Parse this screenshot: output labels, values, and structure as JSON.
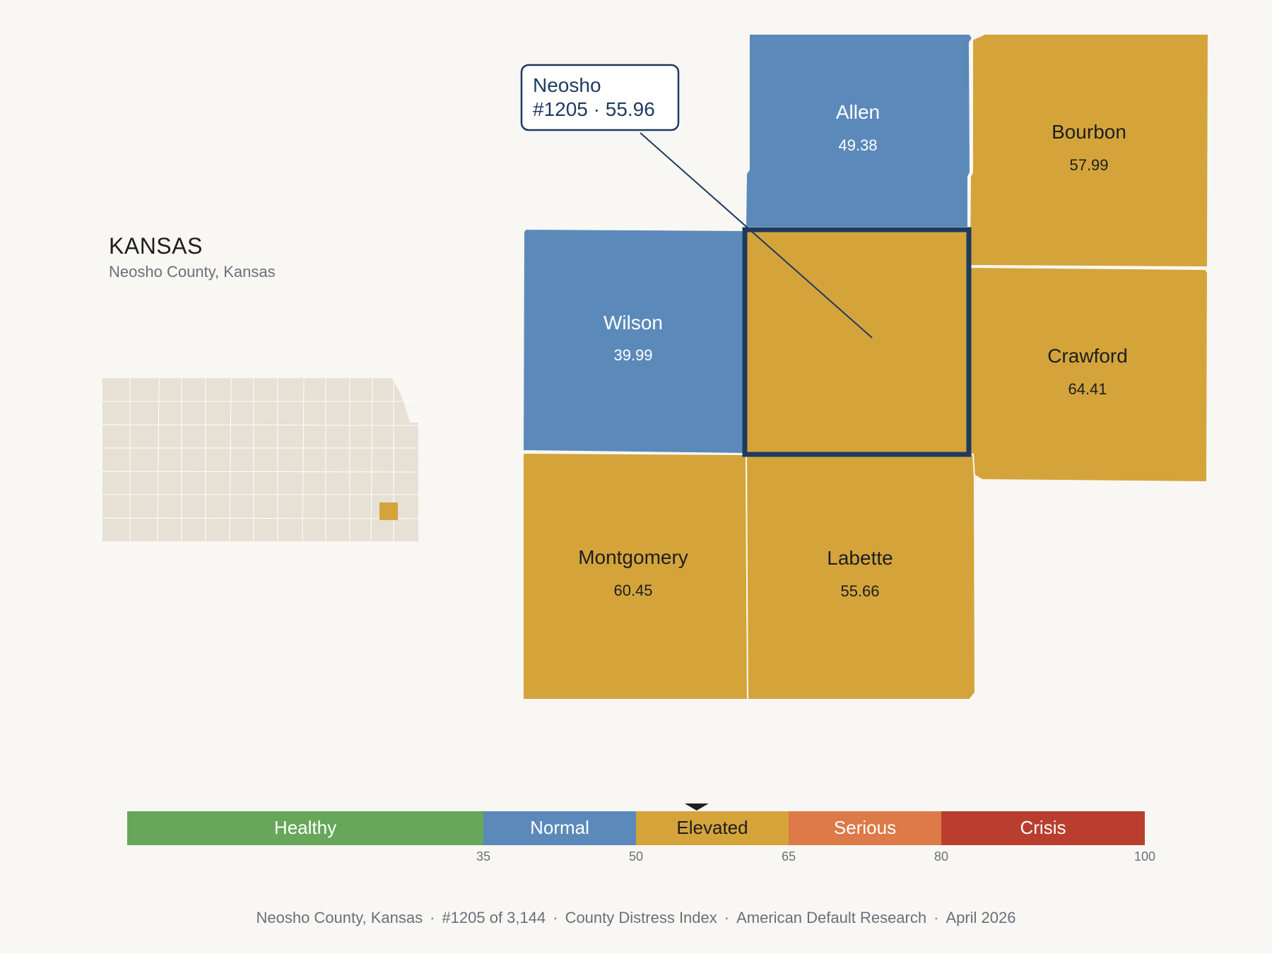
{
  "state": {
    "title": "KANSAS",
    "subtitle": "Neosho County, Kansas"
  },
  "focus": {
    "name": "Neosho",
    "rank_score": "#1205 · 55.96",
    "score": 55.96
  },
  "counties": [
    {
      "id": "allen",
      "name": "Allen",
      "score": "49.38",
      "category": "normal"
    },
    {
      "id": "bourbon",
      "name": "Bourbon",
      "score": "57.99",
      "category": "elevated"
    },
    {
      "id": "wilson",
      "name": "Wilson",
      "score": "39.99",
      "category": "normal"
    },
    {
      "id": "neosho",
      "name": "",
      "score": "",
      "category": "elevated"
    },
    {
      "id": "crawford",
      "name": "Crawford",
      "score": "64.41",
      "category": "elevated"
    },
    {
      "id": "montgomery",
      "name": "Montgomery",
      "score": "60.45",
      "category": "elevated"
    },
    {
      "id": "labette",
      "name": "Labette",
      "score": "55.66",
      "category": "elevated"
    }
  ],
  "legend": {
    "min": 0,
    "max": 100,
    "bands": [
      {
        "label": "Healthy",
        "from": 0,
        "to": 35,
        "color": "#66a75a"
      },
      {
        "label": "Normal",
        "from": 35,
        "to": 50,
        "color": "#5b8aba"
      },
      {
        "label": "Elevated",
        "from": 50,
        "to": 65,
        "color": "#d4a43b"
      },
      {
        "label": "Serious",
        "from": 65,
        "to": 80,
        "color": "#dd7a48"
      },
      {
        "label": "Crisis",
        "from": 80,
        "to": 100,
        "color": "#b93e2d"
      }
    ],
    "ticks": [
      "35",
      "50",
      "65",
      "80",
      "100"
    ]
  },
  "colors": {
    "normal": "#5b8aba",
    "elevated": "#d4a43b",
    "highlight_border": "#1e3a5f",
    "inset_fill": "#e6e0d5",
    "inset_focus": "#d4a43b"
  },
  "footer": {
    "location": "Neosho County, Kansas",
    "rank": "#1205 of 3,144",
    "index": "County Distress Index",
    "source": "American Default Research",
    "date": "April 2026"
  }
}
